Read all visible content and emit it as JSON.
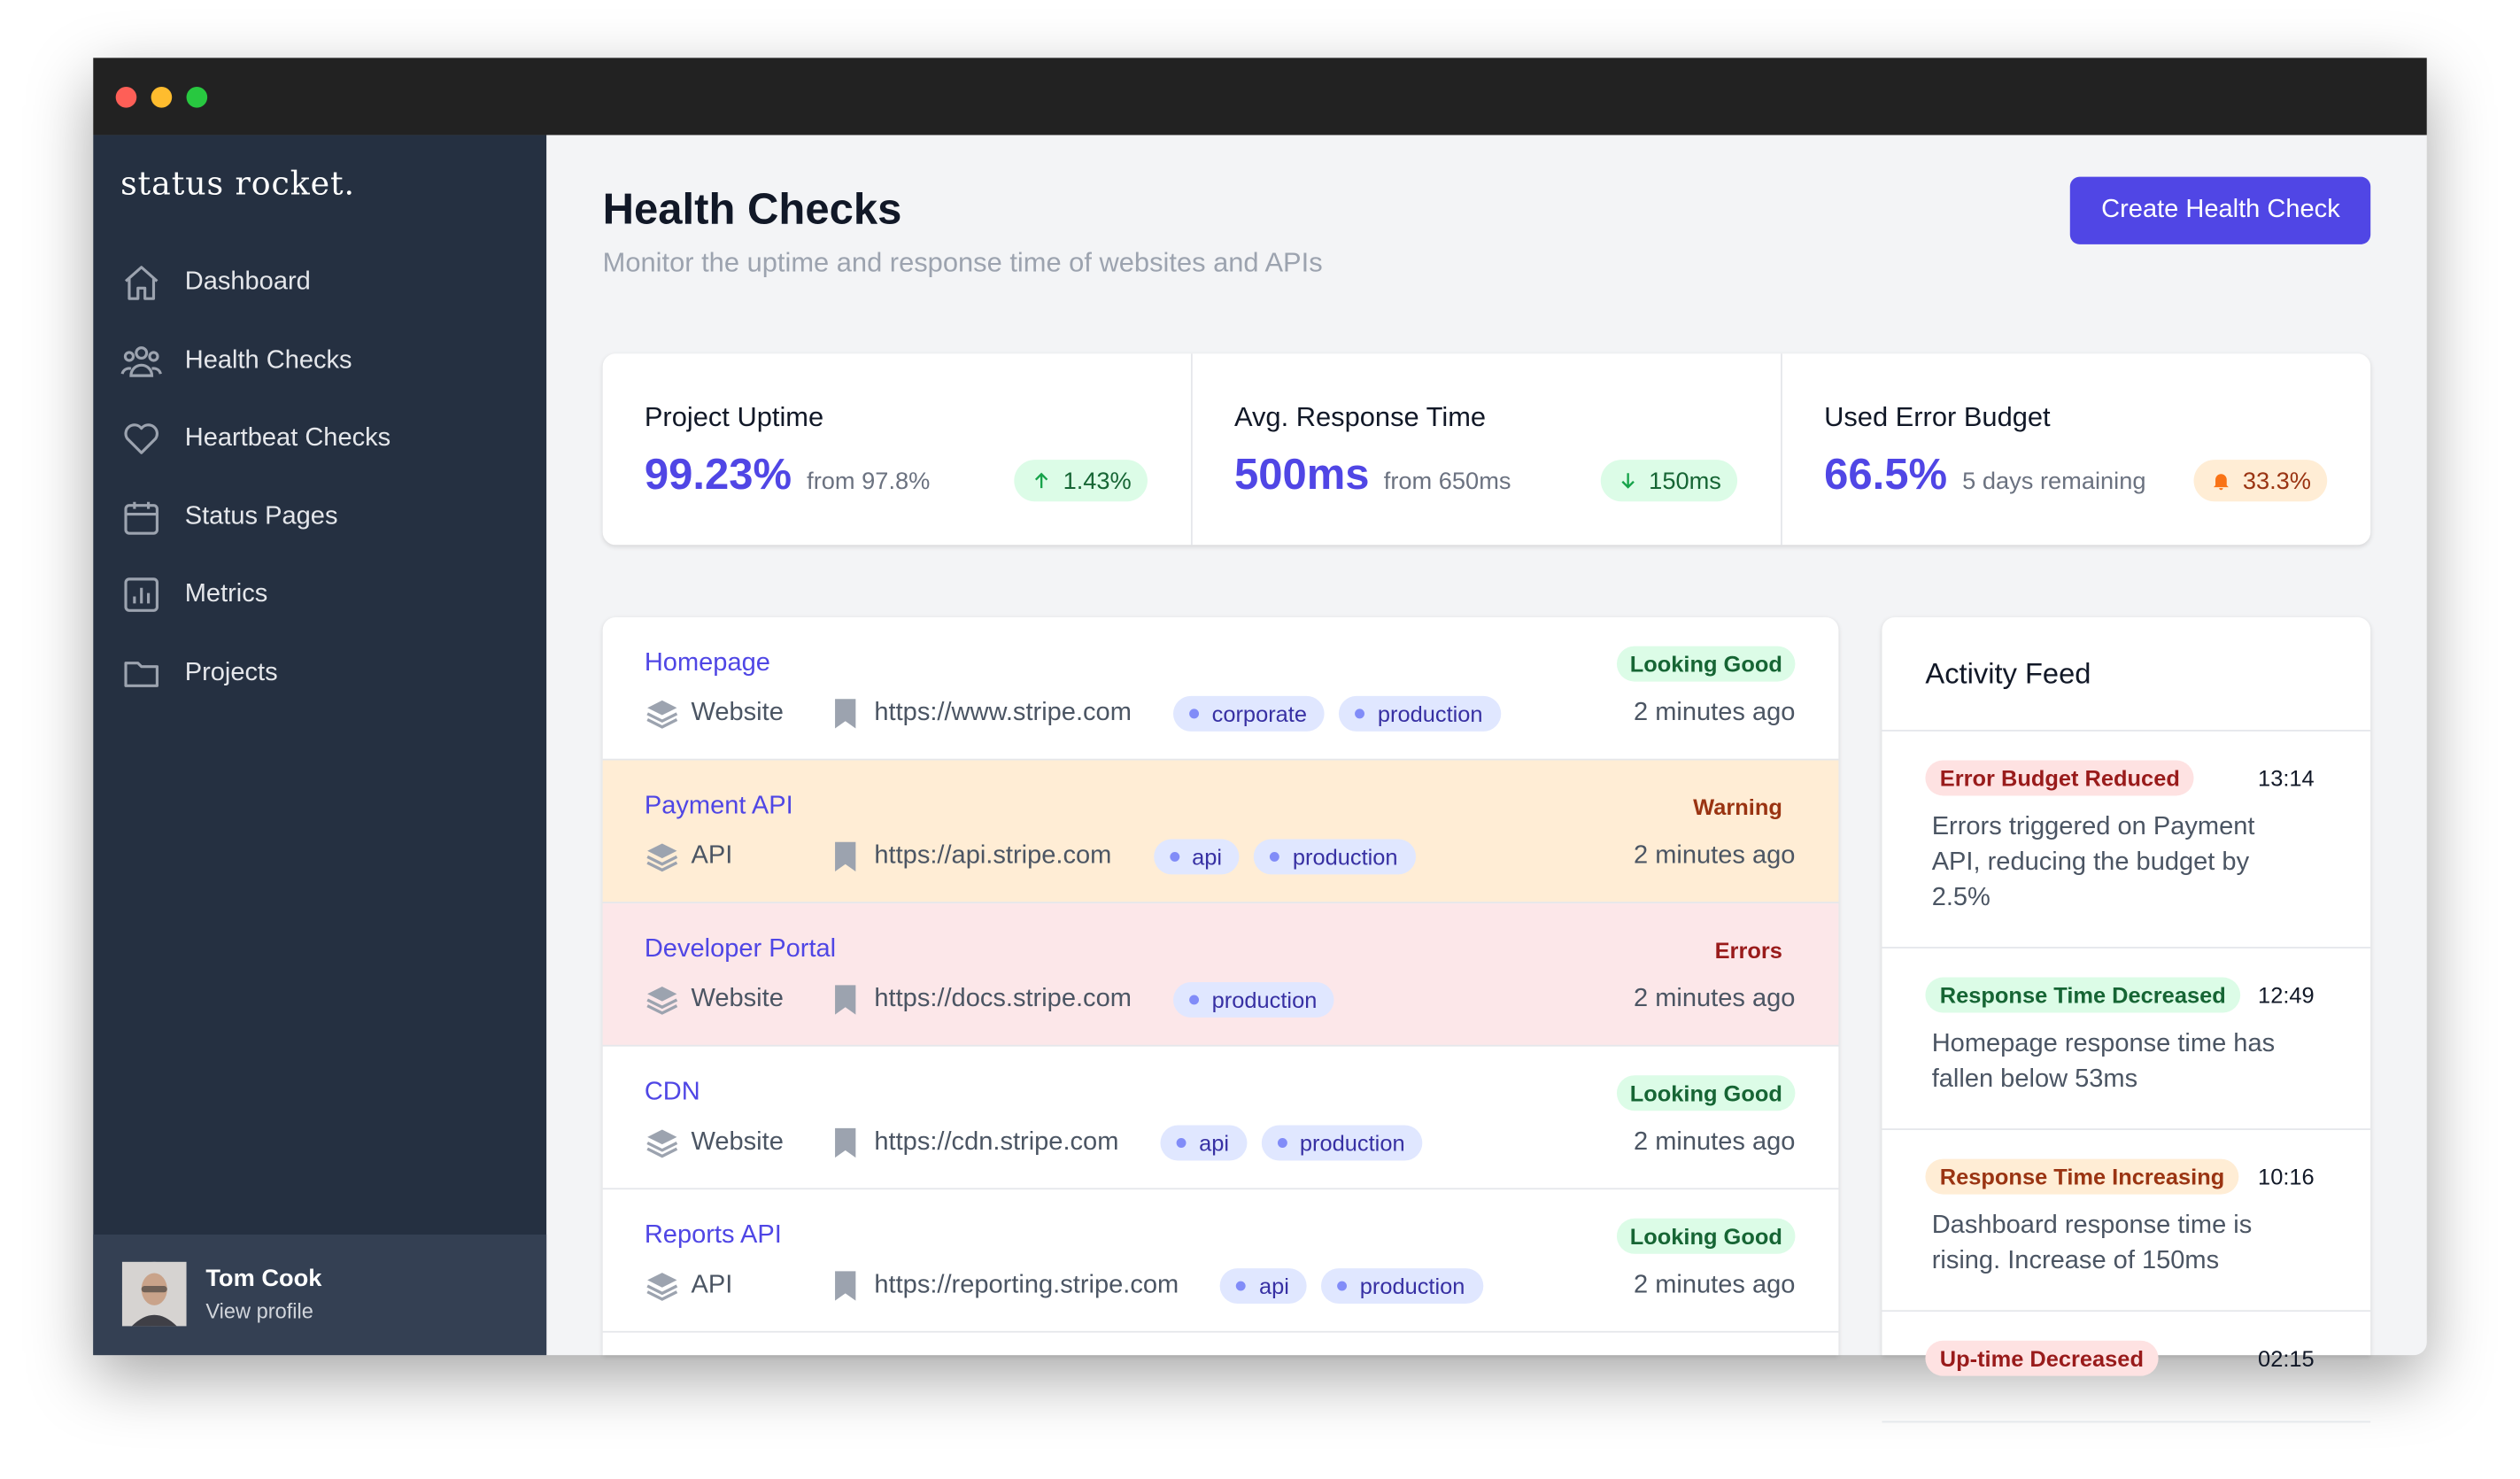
{
  "brand": "status rocket.",
  "nav": [
    "Dashboard",
    "Health Checks",
    "Heartbeat Checks",
    "Status Pages",
    "Metrics",
    "Projects"
  ],
  "user": {
    "name": "Tom Cook",
    "link": "View profile"
  },
  "header": {
    "title": "Health Checks",
    "subtitle": "Monitor the uptime and response time of websites and APIs",
    "button": "Create Health Check"
  },
  "stats": [
    {
      "label": "Project Uptime",
      "value": "99.23%",
      "from": "from 97.8%",
      "change": "1.43%"
    },
    {
      "label": "Avg. Response Time",
      "value": "500ms",
      "from": "from 650ms",
      "change": "150ms"
    },
    {
      "label": "Used Error Budget",
      "value": "66.5%",
      "from": "5 days remaining",
      "change": "33.3%"
    }
  ],
  "checks": [
    {
      "name": "Homepage",
      "status": "Looking Good",
      "type": "Website",
      "url": "https://www.stripe.com",
      "tags": [
        "corporate",
        "production"
      ],
      "time": "2 minutes ago"
    },
    {
      "name": "Payment API",
      "status": "Warning",
      "type": "API",
      "url": "https://api.stripe.com",
      "tags": [
        "api",
        "production"
      ],
      "time": "2 minutes ago"
    },
    {
      "name": "Developer Portal",
      "status": "Errors",
      "type": "Website",
      "url": "https://docs.stripe.com",
      "tags": [
        "production"
      ],
      "time": "2 minutes ago"
    },
    {
      "name": "CDN",
      "status": "Looking Good",
      "type": "Website",
      "url": "https://cdn.stripe.com",
      "tags": [
        "api",
        "production"
      ],
      "time": "2 minutes ago"
    },
    {
      "name": "Reports API",
      "status": "Looking Good",
      "type": "API",
      "url": "https://reporting.stripe.com",
      "tags": [
        "api",
        "production"
      ],
      "time": "2 minutes ago"
    }
  ],
  "activity": {
    "title": "Activity Feed",
    "items": [
      {
        "tag": "Error Budget Reduced",
        "time": "13:14",
        "text": "Errors triggered on Payment API, reducing the budget by 2.5%"
      },
      {
        "tag": "Response Time Decreased",
        "time": "12:49",
        "text": "Homepage response time has fallen below 53ms"
      },
      {
        "tag": "Response Time Increasing",
        "time": "10:16",
        "text": "Dashboard response time is rising. Increase of 150ms"
      },
      {
        "tag": "Up-time Decreased",
        "time": "02:15",
        "text": ""
      }
    ]
  }
}
